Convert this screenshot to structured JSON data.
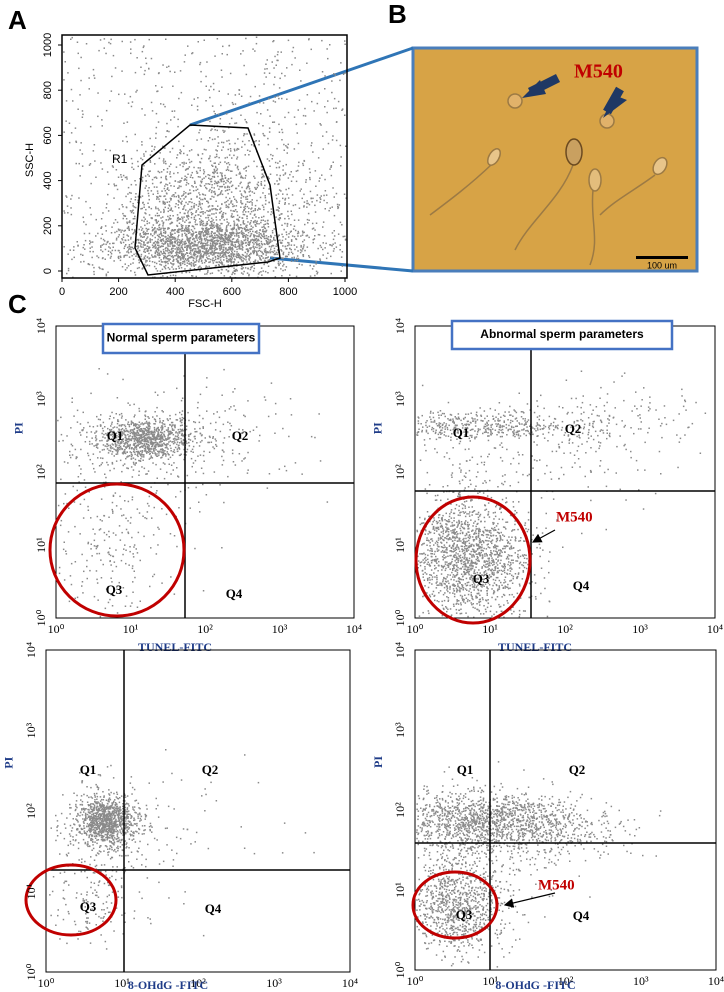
{
  "panels": {
    "a": {
      "label": "A",
      "xlabel": "FSC-H",
      "ylabel": "SSC-H",
      "gate": "R1",
      "xticks": [
        "0",
        "200",
        "400",
        "600",
        "800",
        "1000"
      ],
      "yticks": [
        "0",
        "200",
        "400",
        "600",
        "800",
        "1000"
      ]
    },
    "b": {
      "label": "B",
      "annotation": "M540",
      "scale_bar": "100 um"
    },
    "c": {
      "label": "C",
      "log_ticks": [
        "10⁰",
        "10¹",
        "10²",
        "10³",
        "10⁴"
      ],
      "plots": [
        {
          "title": "Normal sperm parameters",
          "xlabel": "TUNEL-FITC",
          "ylabel": "PI",
          "quadrants": [
            "Q1",
            "Q2",
            "Q3",
            "Q4"
          ]
        },
        {
          "title": "Abnormal sperm parameters",
          "xlabel": "TUNEL-FITC",
          "ylabel": "PI",
          "quadrants": [
            "Q1",
            "Q2",
            "Q3",
            "Q4"
          ],
          "annotation": "M540"
        },
        {
          "xlabel": "8-OHdG -FITC",
          "ylabel": "PI",
          "quadrants": [
            "Q1",
            "Q2",
            "Q3",
            "Q4"
          ]
        },
        {
          "xlabel": "8-OHdG -FITC",
          "ylabel": "PI",
          "quadrants": [
            "Q1",
            "Q2",
            "Q3",
            "Q4"
          ],
          "annotation": "M540"
        }
      ]
    }
  }
}
